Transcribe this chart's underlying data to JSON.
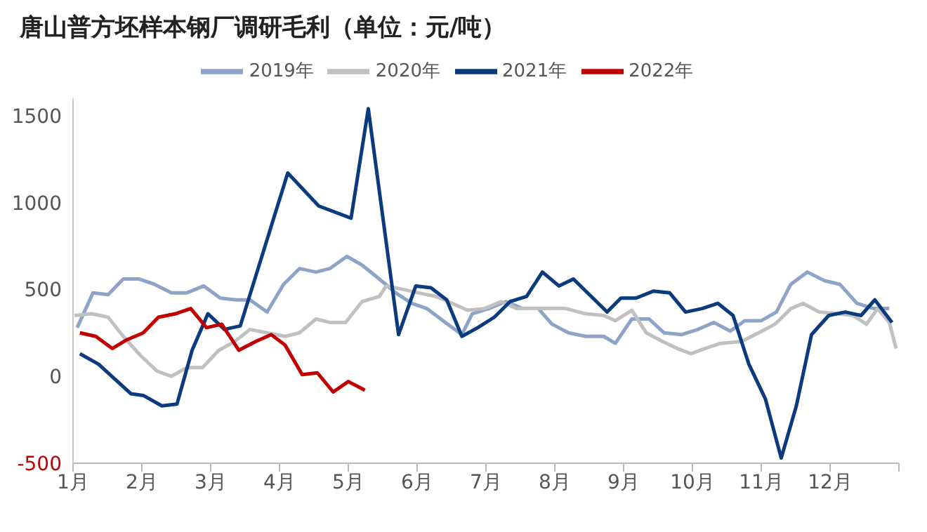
{
  "chart_data": {
    "type": "line",
    "title": "唐山普方坯样本钢厂调研毛利（单位：元/吨）",
    "xlim": [
      1,
      13
    ],
    "xticks": [
      {
        "value": 1,
        "label": "1月"
      },
      {
        "value": 2,
        "label": "2月"
      },
      {
        "value": 3,
        "label": "3月"
      },
      {
        "value": 4,
        "label": "4月"
      },
      {
        "value": 5,
        "label": "5月"
      },
      {
        "value": 6,
        "label": "6月"
      },
      {
        "value": 7,
        "label": "7月"
      },
      {
        "value": 8,
        "label": "8月"
      },
      {
        "value": 9,
        "label": "9月"
      },
      {
        "value": 10,
        "label": "10月"
      },
      {
        "value": 11,
        "label": "11月"
      },
      {
        "value": 12,
        "label": "12月"
      },
      {
        "value": 13,
        "label": null
      }
    ],
    "ylim": [
      -500,
      1600
    ],
    "yticks": [
      -500,
      0,
      500,
      1000,
      1500
    ],
    "legend": "top",
    "marker": "none",
    "line_style": "solid",
    "series": [
      {
        "name": "2019年",
        "color": "#8ea3c8",
        "x": [
          1.06,
          1.29,
          1.51,
          1.73,
          1.96,
          2.18,
          2.43,
          2.65,
          2.9,
          3.14,
          3.37,
          3.57,
          3.82,
          4.06,
          4.29,
          4.53,
          4.73,
          4.98,
          5.2,
          5.45,
          5.69,
          5.92,
          6.14,
          6.41,
          6.65,
          6.8,
          7.04,
          7.29,
          7.53,
          7.76,
          7.96,
          8.2,
          8.45,
          8.71,
          8.88,
          9.12,
          9.37,
          9.59,
          9.84,
          10.08,
          10.31,
          10.55,
          10.76,
          11.0,
          11.22,
          11.43,
          11.67,
          11.92,
          12.14,
          12.39,
          12.63,
          12.86
        ],
        "values": [
          280,
          480,
          470,
          560,
          560,
          530,
          480,
          480,
          520,
          450,
          440,
          440,
          370,
          530,
          620,
          600,
          620,
          690,
          640,
          560,
          480,
          420,
          390,
          310,
          240,
          360,
          390,
          430,
          390,
          390,
          300,
          250,
          230,
          230,
          190,
          330,
          330,
          250,
          240,
          270,
          310,
          260,
          320,
          320,
          370,
          530,
          600,
          550,
          530,
          420,
          390,
          390
        ]
      },
      {
        "name": "2020年",
        "color": "#c0c0c0",
        "x": [
          1.02,
          1.27,
          1.51,
          1.73,
          1.98,
          2.22,
          2.43,
          2.65,
          2.88,
          3.12,
          3.35,
          3.57,
          3.82,
          4.08,
          4.29,
          4.53,
          4.73,
          4.96,
          5.2,
          5.45,
          5.55,
          5.8,
          6.02,
          6.27,
          6.51,
          6.73,
          6.98,
          7.22,
          7.45,
          7.69,
          7.94,
          8.16,
          8.45,
          8.71,
          8.88,
          9.12,
          9.33,
          9.57,
          9.78,
          9.98,
          10.18,
          10.41,
          10.71,
          10.96,
          11.2,
          11.43,
          11.61,
          11.84,
          12.12,
          12.33,
          12.53,
          12.69,
          12.86,
          12.96
        ],
        "values": [
          350,
          360,
          340,
          230,
          120,
          30,
          0,
          50,
          50,
          150,
          200,
          270,
          250,
          230,
          250,
          330,
          310,
          310,
          430,
          460,
          520,
          500,
          480,
          460,
          420,
          380,
          390,
          430,
          390,
          390,
          390,
          390,
          360,
          350,
          320,
          380,
          250,
          200,
          160,
          130,
          160,
          190,
          200,
          250,
          300,
          390,
          420,
          370,
          360,
          350,
          300,
          390,
          310,
          160
        ]
      },
      {
        "name": "2021年",
        "color": "#0b3a7e",
        "x": [
          1.1,
          1.37,
          1.84,
          2.02,
          2.29,
          2.51,
          2.73,
          2.96,
          3.2,
          3.43,
          4.12,
          4.57,
          5.04,
          5.29,
          5.73,
          5.98,
          6.2,
          6.43,
          6.65,
          6.88,
          7.12,
          7.35,
          7.59,
          7.82,
          8.06,
          8.27,
          8.76,
          8.96,
          9.18,
          9.43,
          9.67,
          9.9,
          10.14,
          10.37,
          10.59,
          10.82,
          11.06,
          11.29,
          11.51,
          11.73,
          11.98,
          12.22,
          12.45,
          12.65,
          12.9
        ],
        "values": [
          130,
          70,
          -100,
          -110,
          -170,
          -160,
          150,
          360,
          270,
          290,
          1170,
          980,
          910,
          1540,
          240,
          520,
          510,
          440,
          230,
          280,
          340,
          430,
          460,
          600,
          520,
          560,
          370,
          450,
          450,
          490,
          480,
          370,
          390,
          420,
          350,
          70,
          -130,
          -470,
          -170,
          240,
          350,
          370,
          350,
          440,
          310
        ]
      },
      {
        "name": "2022年",
        "color": "#c00000",
        "x": [
          1.1,
          1.33,
          1.57,
          1.78,
          2.02,
          2.24,
          2.49,
          2.71,
          2.94,
          3.16,
          3.41,
          3.65,
          3.88,
          4.08,
          4.33,
          4.55,
          4.78,
          5.0,
          5.24
        ],
        "values": [
          250,
          230,
          160,
          210,
          250,
          340,
          360,
          390,
          280,
          300,
          150,
          200,
          240,
          180,
          10,
          20,
          -90,
          -30,
          -80
        ]
      }
    ]
  }
}
